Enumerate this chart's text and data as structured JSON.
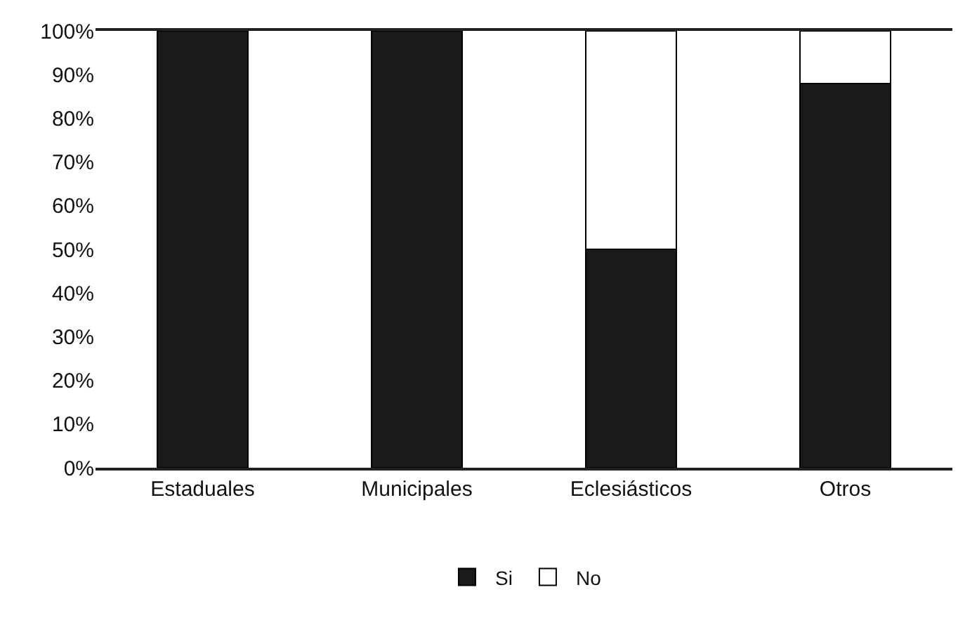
{
  "chart_data": {
    "type": "bar",
    "stacked": true,
    "categories": [
      "Estaduales",
      "Municipales",
      "Eclesiásticos",
      "Otros"
    ],
    "series": [
      {
        "name": "Si",
        "color": "#1a1a1a",
        "values": [
          100,
          100,
          50,
          88
        ]
      },
      {
        "name": "No",
        "color": "#ffffff",
        "values": [
          0,
          0,
          50,
          12
        ]
      }
    ],
    "ylim": [
      0,
      100
    ],
    "yticks": [
      {
        "value": 0,
        "label": "0%"
      },
      {
        "value": 10,
        "label": "10%"
      },
      {
        "value": 20,
        "label": "20%"
      },
      {
        "value": 30,
        "label": "30%"
      },
      {
        "value": 40,
        "label": "40%"
      },
      {
        "value": 50,
        "label": "50%"
      },
      {
        "value": 60,
        "label": "60%"
      },
      {
        "value": 70,
        "label": "70%"
      },
      {
        "value": 80,
        "label": "80%"
      },
      {
        "value": 90,
        "label": "90%"
      },
      {
        "value": 100,
        "label": "100%"
      }
    ],
    "legend": "bottom"
  }
}
